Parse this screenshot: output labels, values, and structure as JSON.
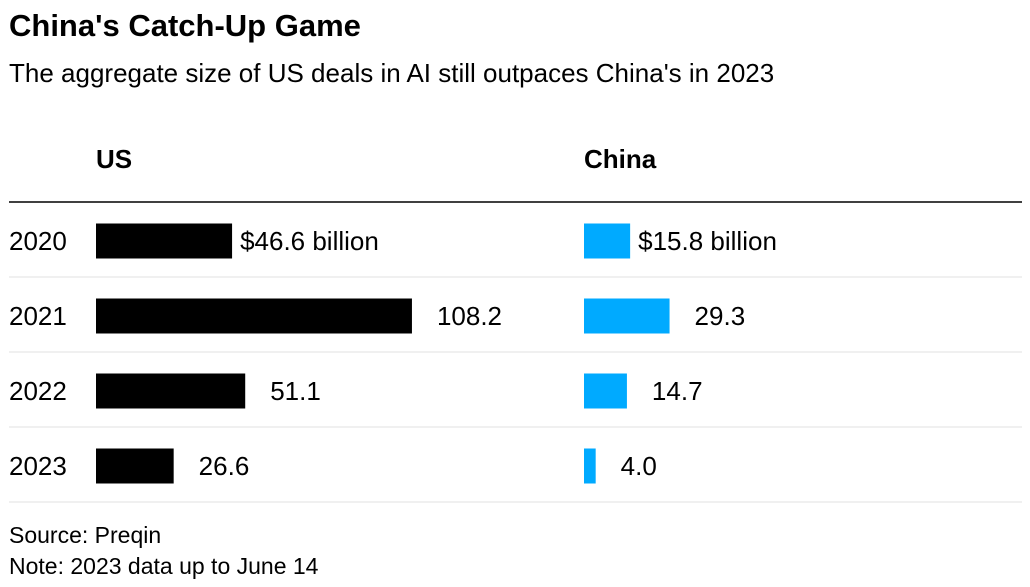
{
  "title": "China's Catch-Up Game",
  "subtitle": "The aggregate size of US deals in AI still outpaces China's in 2023",
  "source": "Source: Preqin",
  "note": "Note: 2023 data up to June 14",
  "chart_data": {
    "type": "bar",
    "orientation": "horizontal",
    "categories": [
      "2020",
      "2021",
      "2022",
      "2023"
    ],
    "series": [
      {
        "name": "US",
        "values": [
          46.6,
          108.2,
          51.1,
          26.6
        ],
        "labels": [
          "$46.6 billion",
          "108.2",
          "51.1",
          "26.6"
        ],
        "color": "#000000"
      },
      {
        "name": "China",
        "values": [
          15.8,
          29.3,
          14.7,
          4.0
        ],
        "labels": [
          "$15.8 billion",
          "29.3",
          "14.7",
          "4.0"
        ],
        "color": "#00aaff"
      }
    ],
    "grid": false,
    "legend": "column headers",
    "unit": "billion USD"
  }
}
